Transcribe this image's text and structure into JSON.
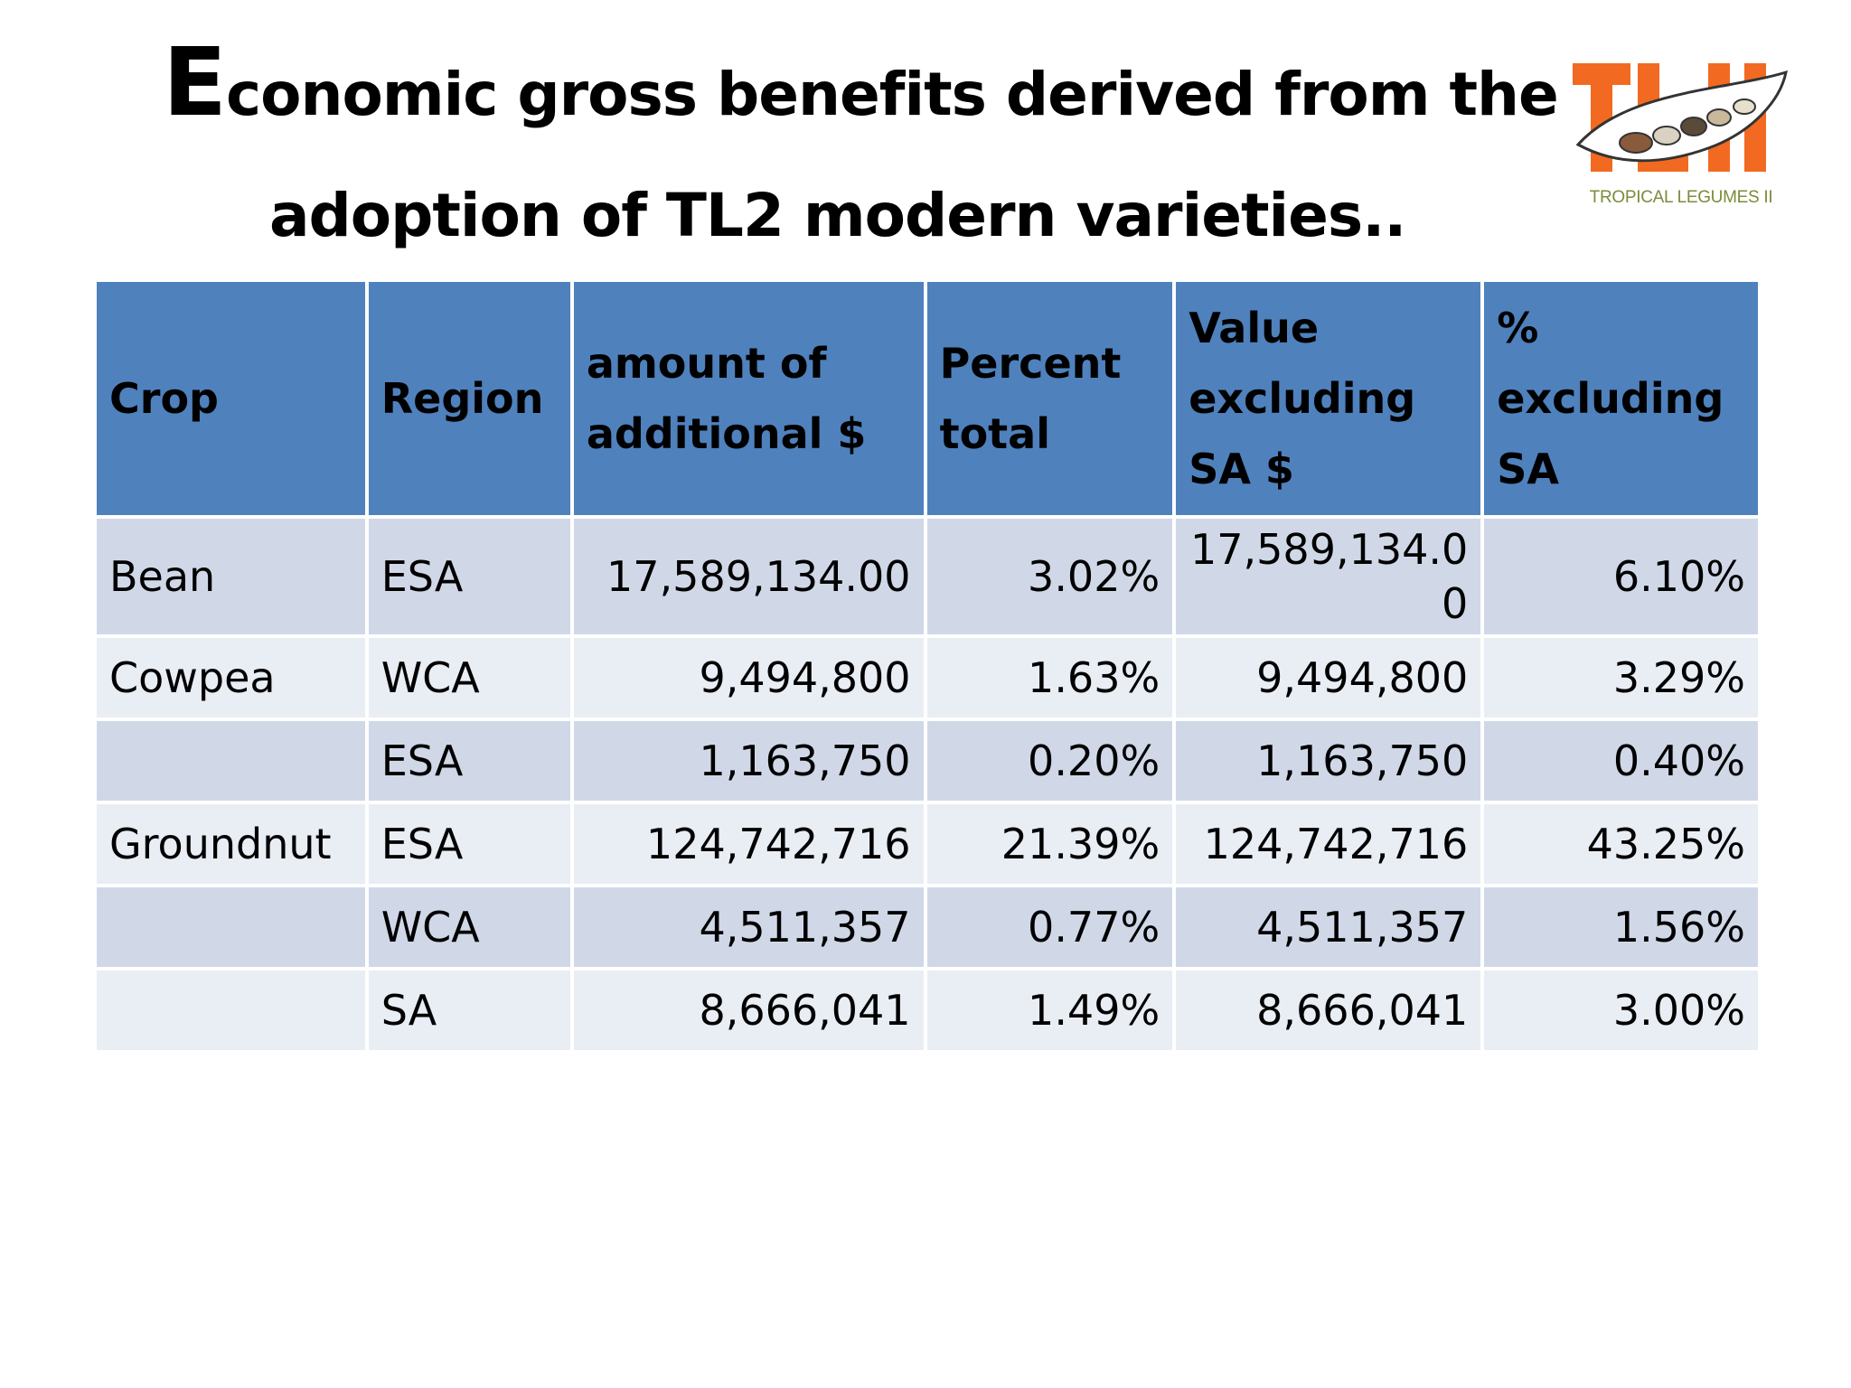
{
  "title": {
    "line1_first": "E",
    "line1_rest": "conomic gross benefits derived from the",
    "line2": "adoption of TL2 modern varieties.."
  },
  "logo": {
    "letters": "TLII",
    "caption": "TROPICAL LEGUMES II",
    "colors": {
      "letters": "#f26a21",
      "caption": "#7a8c3a"
    }
  },
  "table": {
    "headers": [
      "Crop",
      "Region",
      "amount of additional $",
      "Percent total",
      "Value excluding SA $",
      "% excluding SA"
    ],
    "rows": [
      {
        "crop": "Bean",
        "region": "ESA",
        "amount": "17,589,134.00",
        "percent": "3.02%",
        "value_ex_sa": "17,589,134.00",
        "pct_ex_sa": "6.10%"
      },
      {
        "crop": "Cowpea",
        "region": "WCA",
        "amount": "9,494,800",
        "percent": "1.63%",
        "value_ex_sa": "9,494,800",
        "pct_ex_sa": "3.29%"
      },
      {
        "crop": "",
        "region": "ESA",
        "amount": "1,163,750",
        "percent": "0.20%",
        "value_ex_sa": "1,163,750",
        "pct_ex_sa": "0.40%"
      },
      {
        "crop": "Groundnut",
        "region": "ESA",
        "amount": "124,742,716",
        "percent": "21.39%",
        "value_ex_sa": "124,742,716",
        "pct_ex_sa": "43.25%"
      },
      {
        "crop": "",
        "region": "WCA",
        "amount": "4,511,357",
        "percent": "0.77%",
        "value_ex_sa": "4,511,357",
        "pct_ex_sa": "1.56%"
      },
      {
        "crop": "",
        "region": "SA",
        "amount": "8,666,041",
        "percent": "1.49%",
        "value_ex_sa": "8,666,041",
        "pct_ex_sa": "3.00%"
      }
    ]
  },
  "colors": {
    "header": "#4f81bd",
    "row_odd": "#d0d8e8",
    "row_even": "#e9edf4"
  }
}
